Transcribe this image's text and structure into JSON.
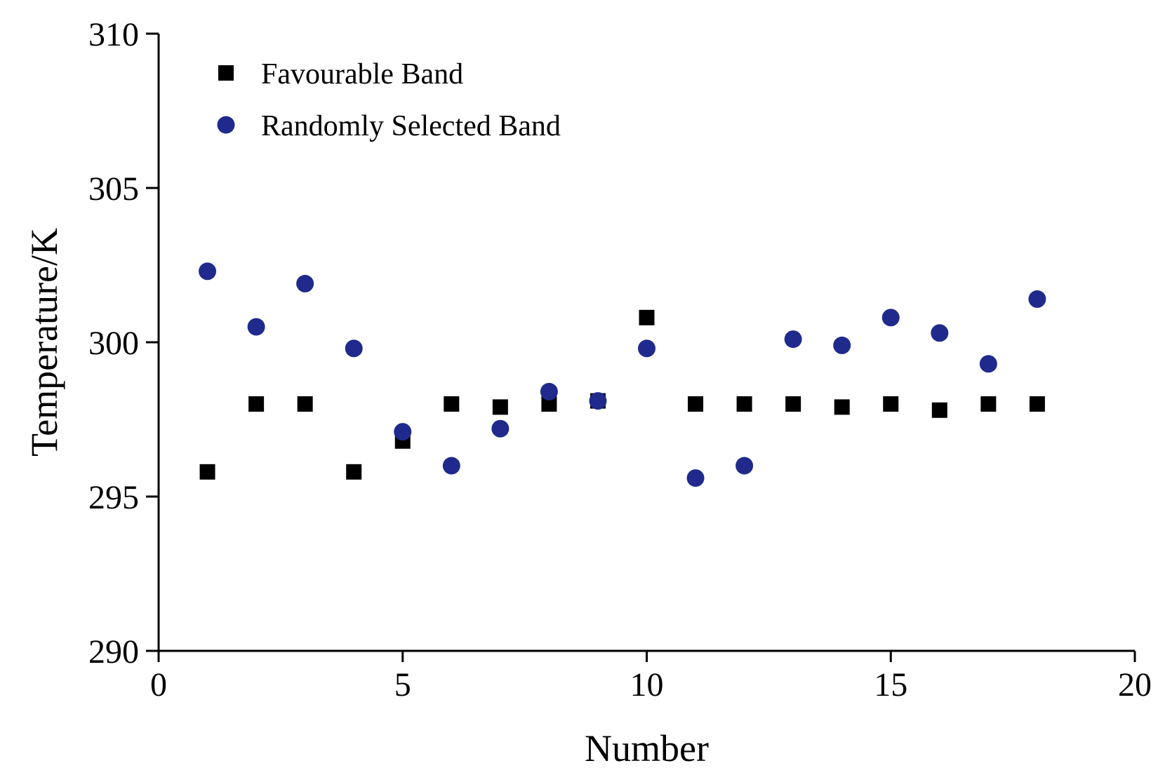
{
  "chart_data": {
    "type": "scatter",
    "title": "",
    "xlabel": "Number",
    "ylabel": "Temperature/K",
    "xlim": [
      0,
      20
    ],
    "ylim": [
      290,
      310
    ],
    "xticks": [
      0,
      5,
      10,
      15,
      20
    ],
    "yticks": [
      290,
      295,
      300,
      305,
      310
    ],
    "grid": false,
    "legend_position": "top-left",
    "series": [
      {
        "name": "Favourable Band",
        "marker": "square",
        "color": "#000000",
        "x": [
          1,
          2,
          3,
          4,
          5,
          6,
          7,
          8,
          9,
          10,
          11,
          12,
          13,
          14,
          15,
          16,
          17,
          18
        ],
        "y": [
          295.8,
          298.0,
          298.0,
          295.8,
          296.8,
          298.0,
          297.9,
          298.0,
          298.1,
          300.8,
          298.0,
          298.0,
          298.0,
          297.9,
          298.0,
          297.8,
          298.0,
          298.0
        ]
      },
      {
        "name": "Randomly Selected Band",
        "marker": "circle",
        "color": "#1f2a8c",
        "x": [
          1,
          2,
          3,
          4,
          5,
          6,
          7,
          8,
          9,
          10,
          11,
          12,
          13,
          14,
          15,
          16,
          17,
          18
        ],
        "y": [
          302.3,
          300.5,
          301.9,
          299.8,
          297.1,
          296.0,
          297.2,
          298.4,
          298.1,
          299.8,
          295.6,
          296.0,
          300.1,
          299.9,
          300.8,
          300.3,
          299.3,
          301.4
        ]
      }
    ]
  }
}
